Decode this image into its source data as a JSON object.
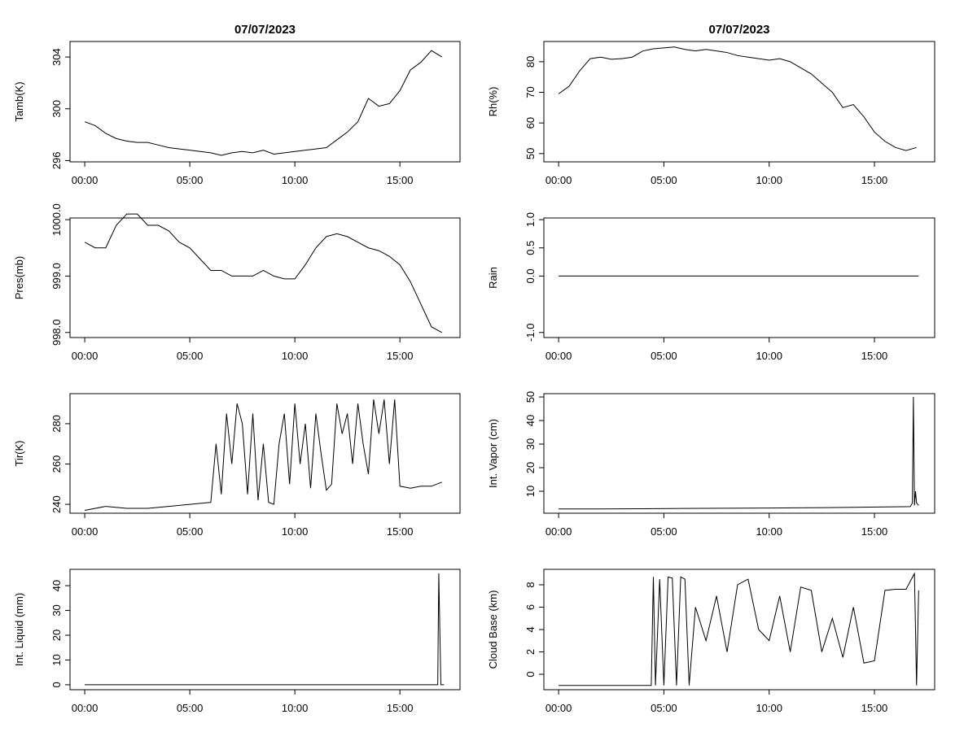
{
  "chart_data": [
    {
      "type": "line",
      "title": "07/07/2023",
      "ylabel": "Tamb(K)",
      "color": "#000000",
      "x": [
        0,
        0.5,
        1,
        1.5,
        2,
        2.5,
        3,
        3.5,
        4,
        4.5,
        5,
        5.5,
        6,
        6.5,
        7,
        7.5,
        8,
        8.5,
        9,
        9.5,
        10,
        10.5,
        11,
        11.5,
        12,
        12.5,
        13,
        13.5,
        14,
        14.5,
        15,
        15.5,
        16,
        16.5,
        17
      ],
      "values": [
        299.0,
        298.7,
        298.1,
        297.7,
        297.5,
        297.4,
        297.4,
        297.2,
        297.0,
        296.9,
        296.8,
        296.7,
        296.6,
        296.4,
        296.6,
        296.7,
        296.6,
        296.8,
        296.5,
        296.6,
        296.7,
        296.8,
        296.9,
        297.0,
        297.6,
        298.2,
        299.0,
        300.8,
        300.2,
        300.4,
        301.4,
        303.0,
        303.6,
        304.5,
        304.0
      ],
      "xlim": [
        -0.7,
        17.86
      ],
      "xticks": [
        {
          "value": 0,
          "label": "00:00"
        },
        {
          "value": 5,
          "label": "05:00"
        },
        {
          "value": 10,
          "label": "10:00"
        },
        {
          "value": 15,
          "label": "15:00"
        }
      ],
      "ylim": [
        295.9,
        305.2
      ],
      "yticks": [
        296,
        300,
        304
      ]
    },
    {
      "type": "line",
      "title": "07/07/2023",
      "ylabel": "Rh(%)",
      "color": "#000000",
      "x": [
        0,
        0.5,
        1,
        1.5,
        2,
        2.5,
        3,
        3.5,
        4,
        4.5,
        5,
        5.5,
        6,
        6.5,
        7,
        7.5,
        8,
        8.5,
        9,
        9.5,
        10,
        10.5,
        11,
        11.5,
        12,
        12.5,
        13,
        13.5,
        14,
        14.5,
        15,
        15.5,
        16,
        16.5,
        17
      ],
      "values": [
        69.5,
        72,
        77,
        81,
        81.5,
        80.8,
        81,
        81.5,
        83.5,
        84.2,
        84.5,
        84.8,
        84,
        83.5,
        84,
        83.5,
        83,
        82,
        81.5,
        81,
        80.5,
        81,
        80,
        78,
        76,
        73,
        70,
        65,
        66,
        62,
        57,
        54,
        52,
        51,
        52
      ],
      "xlim": [
        -0.7,
        17.86
      ],
      "xticks": [
        {
          "value": 0,
          "label": "00:00"
        },
        {
          "value": 5,
          "label": "05:00"
        },
        {
          "value": 10,
          "label": "10:00"
        },
        {
          "value": 15,
          "label": "15:00"
        }
      ],
      "ylim": [
        47.3,
        86.6
      ],
      "yticks": [
        50,
        60,
        70,
        80
      ]
    },
    {
      "type": "line",
      "ylabel": "Pres(mb)",
      "color": "#000000",
      "x": [
        0,
        0.5,
        1,
        1.5,
        2,
        2.5,
        3,
        3.5,
        4,
        4.5,
        5,
        5.5,
        6,
        6.5,
        7,
        7.5,
        8,
        8.5,
        9,
        9.5,
        10,
        10.5,
        11,
        11.5,
        12,
        12.5,
        13,
        13.5,
        14,
        14.5,
        15,
        15.5,
        16,
        16.5,
        17
      ],
      "values": [
        999.6,
        999.5,
        999.5,
        999.9,
        1000.1,
        1000.1,
        999.9,
        999.9,
        999.8,
        999.6,
        999.5,
        999.3,
        999.1,
        999.1,
        999.0,
        999.0,
        999.0,
        999.1,
        999.0,
        998.95,
        998.95,
        999.2,
        999.5,
        999.7,
        999.75,
        999.7,
        999.6,
        999.5,
        999.45,
        999.35,
        999.2,
        998.9,
        998.5,
        998.1,
        998.0
      ],
      "xlim": [
        -0.7,
        17.86
      ],
      "xticks": [
        {
          "value": 0,
          "label": "00:00"
        },
        {
          "value": 5,
          "label": "05:00"
        },
        {
          "value": 10,
          "label": "10:00"
        },
        {
          "value": 15,
          "label": "15:00"
        }
      ],
      "ylim": [
        997.91,
        1000.03
      ],
      "yticks": [
        {
          "value": 998,
          "label": "998.0"
        },
        {
          "value": 999,
          "label": "999.0"
        },
        {
          "value": 1000,
          "label": "1000.0"
        }
      ]
    },
    {
      "type": "line",
      "ylabel": "Rain",
      "color": "#000000",
      "x": [
        0,
        17.1
      ],
      "values": [
        0,
        0
      ],
      "xlim": [
        -0.7,
        17.86
      ],
      "xticks": [
        {
          "value": 0,
          "label": "00:00"
        },
        {
          "value": 5,
          "label": "05:00"
        },
        {
          "value": 10,
          "label": "10:00"
        },
        {
          "value": 15,
          "label": "15:00"
        }
      ],
      "ylim": [
        -1.09,
        1.03
      ],
      "yticks": [
        {
          "value": -1,
          "label": "-1.0"
        },
        {
          "value": 0,
          "label": "0.0"
        },
        0.5,
        {
          "value": 1,
          "label": "1.0"
        }
      ]
    },
    {
      "type": "line",
      "ylabel": "Tir(K)",
      "color": "#000000",
      "x": [
        0,
        1,
        2,
        3,
        4,
        5,
        6,
        6.25,
        6.5,
        6.75,
        7,
        7.25,
        7.5,
        7.75,
        8,
        8.25,
        8.5,
        8.75,
        9,
        9.25,
        9.5,
        9.75,
        10,
        10.25,
        10.5,
        10.75,
        11,
        11.25,
        11.5,
        11.75,
        12,
        12.25,
        12.5,
        12.75,
        13,
        13.25,
        13.5,
        13.75,
        14,
        14.25,
        14.5,
        14.75,
        15,
        15.5,
        16,
        16.5,
        17
      ],
      "values": [
        237,
        239,
        238,
        238,
        239,
        240,
        241,
        270,
        245,
        285,
        260,
        290,
        280,
        245,
        285,
        242,
        270,
        241,
        240,
        270,
        285,
        250,
        290,
        260,
        280,
        248,
        285,
        265,
        247,
        250,
        290,
        275,
        285,
        260,
        290,
        270,
        255,
        292,
        275,
        292,
        260,
        292,
        249,
        248,
        249,
        249,
        251
      ],
      "xlim": [
        -0.7,
        17.86
      ],
      "xticks": [
        {
          "value": 0,
          "label": "00:00"
        },
        {
          "value": 5,
          "label": "05:00"
        },
        {
          "value": 10,
          "label": "10:00"
        },
        {
          "value": 15,
          "label": "15:00"
        }
      ],
      "ylim": [
        235.6,
        294.9
      ],
      "yticks": [
        240,
        260,
        280
      ]
    },
    {
      "type": "line",
      "ylabel": "Int. Vapor (cm)",
      "color": "#000000",
      "x": [
        0,
        2,
        4,
        6,
        8,
        10,
        12,
        14,
        16,
        16.7,
        16.8,
        16.85,
        16.9,
        16.95,
        17.0,
        17.1
      ],
      "values": [
        2.5,
        2.5,
        2.6,
        2.7,
        2.8,
        2.9,
        3.0,
        3.2,
        3.4,
        3.5,
        5,
        50,
        4,
        10,
        5,
        4
      ],
      "xlim": [
        -0.7,
        17.86
      ],
      "xticks": [
        {
          "value": 0,
          "label": "00:00"
        },
        {
          "value": 5,
          "label": "05:00"
        },
        {
          "value": 10,
          "label": "10:00"
        },
        {
          "value": 15,
          "label": "15:00"
        }
      ],
      "ylim": [
        0.69,
        51.4
      ],
      "yticks": [
        10,
        20,
        30,
        40,
        50
      ]
    },
    {
      "type": "line",
      "ylabel": "Int. Liquid (mm)",
      "color": "#000000",
      "x": [
        0,
        4,
        8,
        12,
        16,
        16.8,
        16.85,
        16.9,
        16.95,
        17.0,
        17.1
      ],
      "values": [
        0,
        0,
        0,
        0,
        0,
        0,
        45,
        22,
        0,
        0,
        0
      ],
      "xlim": [
        -0.7,
        17.86
      ],
      "xticks": [
        {
          "value": 0,
          "label": "00:00"
        },
        {
          "value": 5,
          "label": "05:00"
        },
        {
          "value": 10,
          "label": "10:00"
        },
        {
          "value": 15,
          "label": "15:00"
        }
      ],
      "ylim": [
        -2.0,
        46.6
      ],
      "yticks": [
        0,
        10,
        20,
        30,
        40
      ]
    },
    {
      "type": "line",
      "ylabel": "Cloud Base (km)",
      "color": "#000000",
      "x": [
        0,
        4.4,
        4.5,
        4.6,
        4.8,
        5.0,
        5.2,
        5.4,
        5.6,
        5.8,
        6.0,
        6.2,
        6.5,
        7,
        7.5,
        8,
        8.5,
        9,
        9.5,
        10,
        10.5,
        11,
        11.5,
        12,
        12.5,
        13,
        13.5,
        14,
        14.5,
        15,
        15.5,
        16,
        16.5,
        16.9,
        17.0,
        17.1
      ],
      "values": [
        -1,
        -1,
        8.7,
        -1,
        8.5,
        -1,
        8.7,
        8.6,
        -1,
        8.7,
        8.5,
        -1,
        6,
        3,
        7,
        2,
        8,
        8.5,
        4,
        3,
        7,
        2,
        7.8,
        7.5,
        2,
        5,
        1.5,
        6,
        1,
        1.2,
        7.5,
        7.6,
        7.6,
        9,
        -1,
        7.5
      ],
      "xlim": [
        -0.7,
        17.86
      ],
      "xticks": [
        {
          "value": 0,
          "label": "00:00"
        },
        {
          "value": 5,
          "label": "05:00"
        },
        {
          "value": 10,
          "label": "10:00"
        },
        {
          "value": 15,
          "label": "15:00"
        }
      ],
      "ylim": [
        -1.38,
        9.38
      ],
      "yticks": [
        0,
        2,
        4,
        6,
        8
      ]
    }
  ]
}
